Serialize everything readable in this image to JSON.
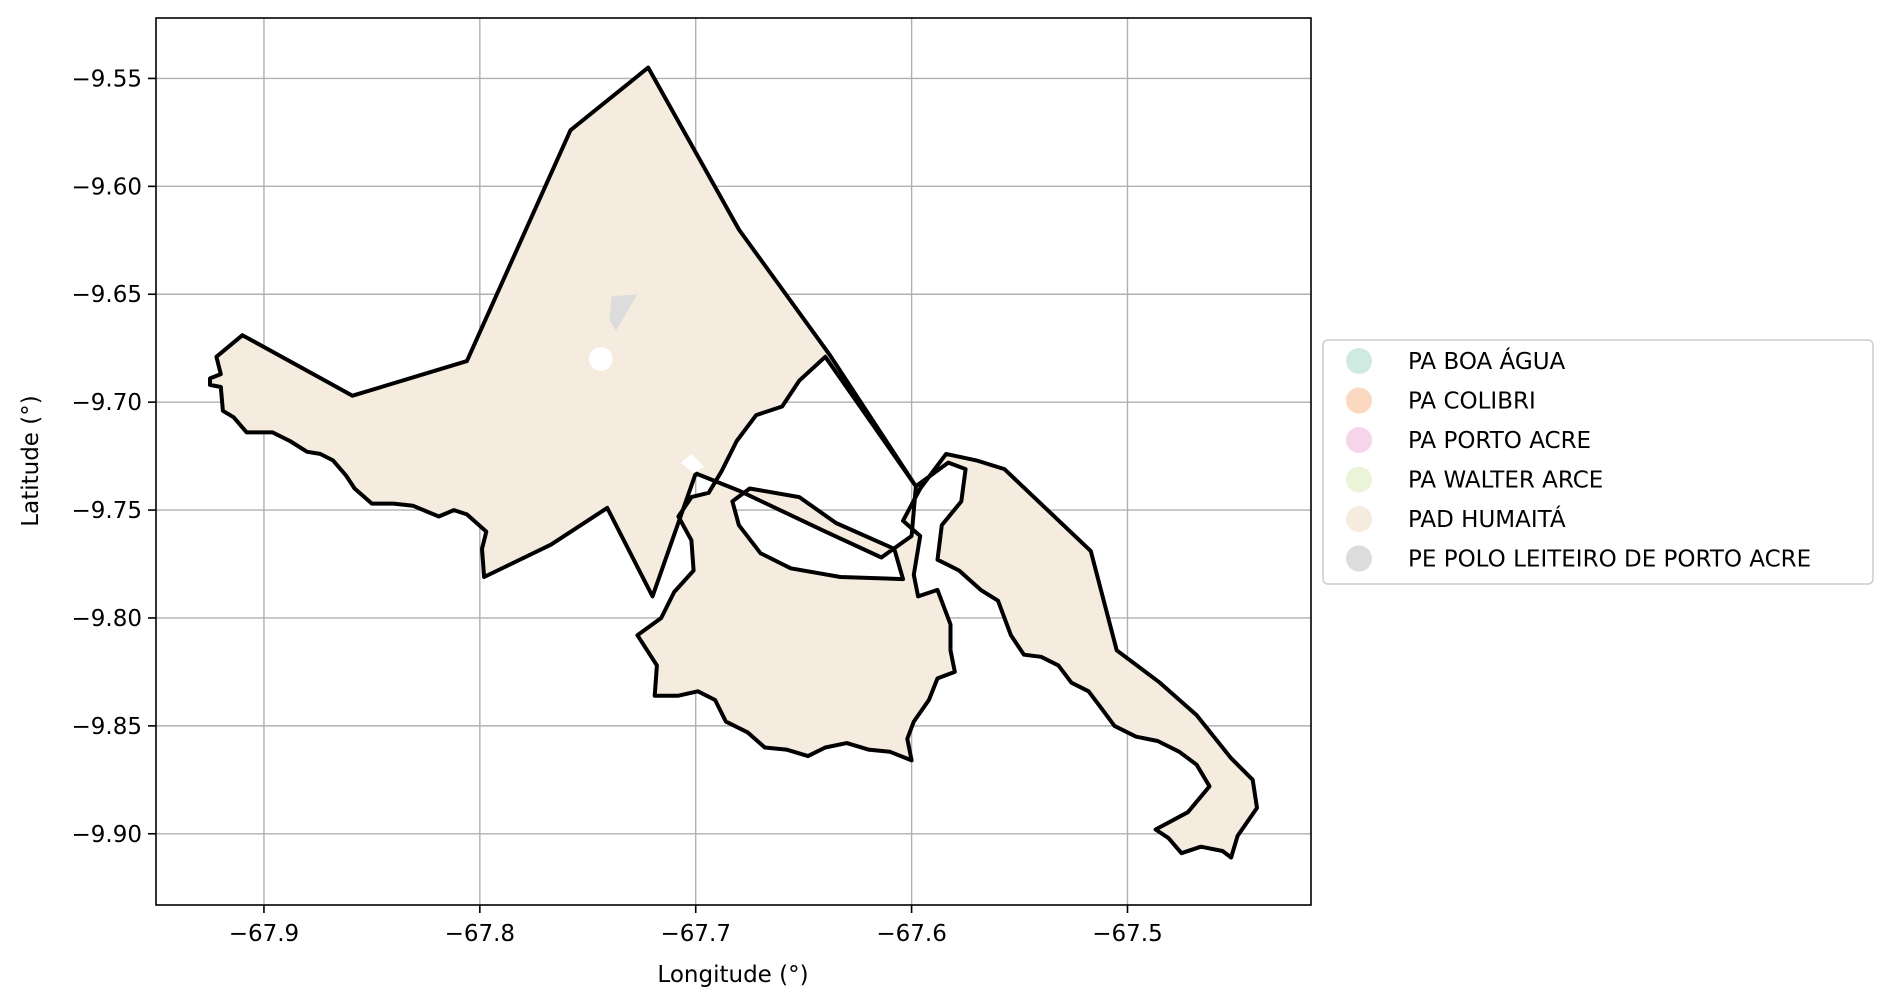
{
  "chart_data": {
    "type": "map",
    "xlabel": "Longitude (°)",
    "ylabel": "Latitude (°)",
    "xlim": [
      -67.95,
      -67.415
    ],
    "ylim": [
      -9.933,
      -9.522
    ],
    "x_ticks": [
      -67.9,
      -67.8,
      -67.7,
      -67.6,
      -67.5
    ],
    "x_tick_labels": [
      "−67.9",
      "−67.8",
      "−67.7",
      "−67.6",
      "−67.5"
    ],
    "y_ticks": [
      -9.55,
      -9.6,
      -9.65,
      -9.7,
      -9.75,
      -9.8,
      -9.85,
      -9.9
    ],
    "y_tick_labels": [
      "−9.55",
      "−9.60",
      "−9.65",
      "−9.70",
      "−9.75",
      "−9.80",
      "−9.85",
      "−9.90"
    ],
    "grid": true,
    "legend_position": "center-right outside plot",
    "legend": [
      {
        "label": "PA BOA ÁGUA",
        "color": "#cfeadf"
      },
      {
        "label": "PA COLIBRI",
        "color": "#fbd8c0"
      },
      {
        "label": "PA PORTO ACRE",
        "color": "#f5d5ea"
      },
      {
        "label": "PA WALTER ARCE",
        "color": "#e9f4d8"
      },
      {
        "label": "PAD HUMAITÁ",
        "color": "#f5ebde"
      },
      {
        "label": "PE POLO LEITEIRO DE PORTO ACRE",
        "color": "#dcdcdc"
      }
    ],
    "regions": [
      {
        "name": "PAD HUMAITÁ",
        "color": "#f5ebde",
        "outline": "#000000",
        "outer": [
          [
            -67.922,
            -9.679
          ],
          [
            -67.91,
            -9.669
          ],
          [
            -67.859,
            -9.697
          ],
          [
            -67.806,
            -9.681
          ],
          [
            -67.758,
            -9.574
          ],
          [
            -67.722,
            -9.545
          ],
          [
            -67.68,
            -9.62
          ],
          [
            -67.638,
            -9.678
          ],
          [
            -67.598,
            -9.739
          ],
          [
            -67.583,
            -9.728
          ],
          [
            -67.575,
            -9.731
          ],
          [
            -67.577,
            -9.746
          ],
          [
            -67.586,
            -9.757
          ],
          [
            -67.588,
            -9.773
          ],
          [
            -67.578,
            -9.778
          ],
          [
            -67.568,
            -9.787
          ],
          [
            -67.56,
            -9.792
          ],
          [
            -67.554,
            -9.808
          ],
          [
            -67.548,
            -9.817
          ],
          [
            -67.54,
            -9.818
          ],
          [
            -67.532,
            -9.822
          ],
          [
            -67.526,
            -9.83
          ],
          [
            -67.518,
            -9.834
          ],
          [
            -67.512,
            -9.842
          ],
          [
            -67.506,
            -9.85
          ],
          [
            -67.496,
            -9.855
          ],
          [
            -67.486,
            -9.857
          ],
          [
            -67.476,
            -9.862
          ],
          [
            -67.468,
            -9.868
          ],
          [
            -67.462,
            -9.878
          ],
          [
            -67.472,
            -9.89
          ],
          [
            -67.487,
            -9.898
          ],
          [
            -67.481,
            -9.902
          ],
          [
            -67.475,
            -9.909
          ],
          [
            -67.466,
            -9.906
          ],
          [
            -67.456,
            -9.908
          ],
          [
            -67.452,
            -9.911
          ],
          [
            -67.449,
            -9.901
          ],
          [
            -67.44,
            -9.888
          ],
          [
            -67.442,
            -9.875
          ],
          [
            -67.452,
            -9.865
          ],
          [
            -67.468,
            -9.845
          ],
          [
            -67.485,
            -9.83
          ],
          [
            -67.505,
            -9.815
          ],
          [
            -67.517,
            -9.769
          ],
          [
            -67.557,
            -9.731
          ],
          [
            -67.57,
            -9.727
          ],
          [
            -67.584,
            -9.724
          ],
          [
            -67.596,
            -9.74
          ],
          [
            -67.604,
            -9.755
          ],
          [
            -67.596,
            -9.762
          ],
          [
            -67.599,
            -9.78
          ],
          [
            -67.597,
            -9.79
          ],
          [
            -67.588,
            -9.787
          ],
          [
            -67.582,
            -9.803
          ],
          [
            -67.582,
            -9.815
          ],
          [
            -67.58,
            -9.825
          ],
          [
            -67.588,
            -9.828
          ],
          [
            -67.592,
            -9.838
          ],
          [
            -67.599,
            -9.848
          ],
          [
            -67.602,
            -9.856
          ],
          [
            -67.6,
            -9.866
          ],
          [
            -67.61,
            -9.862
          ],
          [
            -67.62,
            -9.861
          ],
          [
            -67.63,
            -9.858
          ],
          [
            -67.64,
            -9.86
          ],
          [
            -67.648,
            -9.864
          ],
          [
            -67.658,
            -9.861
          ],
          [
            -67.668,
            -9.86
          ],
          [
            -67.676,
            -9.853
          ],
          [
            -67.686,
            -9.848
          ],
          [
            -67.691,
            -9.838
          ],
          [
            -67.699,
            -9.834
          ],
          [
            -67.708,
            -9.836
          ],
          [
            -67.719,
            -9.836
          ],
          [
            -67.718,
            -9.822
          ],
          [
            -67.727,
            -9.808
          ],
          [
            -67.716,
            -9.8
          ],
          [
            -67.71,
            -9.788
          ],
          [
            -67.701,
            -9.778
          ],
          [
            -67.702,
            -9.764
          ],
          [
            -67.708,
            -9.753
          ],
          [
            -67.702,
            -9.744
          ],
          [
            -67.694,
            -9.742
          ],
          [
            -67.688,
            -9.732
          ],
          [
            -67.681,
            -9.718
          ],
          [
            -67.672,
            -9.706
          ],
          [
            -67.66,
            -9.702
          ],
          [
            -67.652,
            -9.69
          ],
          [
            -67.64,
            -9.679
          ],
          [
            -67.598,
            -9.739
          ],
          [
            -67.6,
            -9.762
          ],
          [
            -67.614,
            -9.772
          ],
          [
            -67.64,
            -9.76
          ],
          [
            -67.68,
            -9.741
          ],
          [
            -67.7,
            -9.733
          ],
          [
            -67.72,
            -9.79
          ],
          [
            -67.741,
            -9.749
          ],
          [
            -67.767,
            -9.766
          ],
          [
            -67.798,
            -9.781
          ],
          [
            -67.799,
            -9.768
          ],
          [
            -67.797,
            -9.76
          ],
          [
            -67.806,
            -9.752
          ],
          [
            -67.812,
            -9.75
          ],
          [
            -67.819,
            -9.753
          ],
          [
            -67.831,
            -9.748
          ],
          [
            -67.84,
            -9.747
          ],
          [
            -67.85,
            -9.747
          ],
          [
            -67.858,
            -9.74
          ],
          [
            -67.862,
            -9.734
          ],
          [
            -67.868,
            -9.727
          ],
          [
            -67.874,
            -9.724
          ],
          [
            -67.88,
            -9.723
          ],
          [
            -67.888,
            -9.718
          ],
          [
            -67.896,
            -9.714
          ],
          [
            -67.908,
            -9.714
          ],
          [
            -67.914,
            -9.707
          ],
          [
            -67.919,
            -9.704
          ],
          [
            -67.92,
            -9.693
          ],
          [
            -67.925,
            -9.692
          ],
          [
            -67.925,
            -9.689
          ],
          [
            -67.92,
            -9.687
          ],
          [
            -67.922,
            -9.679
          ]
        ],
        "holes": [
          [
            [
              -67.683,
              -9.746
            ],
            [
              -67.675,
              -9.74
            ],
            [
              -67.652,
              -9.744
            ],
            [
              -67.635,
              -9.756
            ],
            [
              -67.608,
              -9.768
            ],
            [
              -67.604,
              -9.782
            ],
            [
              -67.633,
              -9.781
            ],
            [
              -67.656,
              -9.777
            ],
            [
              -67.67,
              -9.77
            ],
            [
              -67.68,
              -9.757
            ],
            [
              -67.683,
              -9.746
            ]
          ]
        ]
      },
      {
        "name": "PE POLO LEITEIRO DE PORTO ACRE",
        "color": "#dcdcdc",
        "outline": null,
        "outer": [
          [
            -67.739,
            -9.651
          ],
          [
            -67.727,
            -9.65
          ],
          [
            -67.737,
            -9.667
          ],
          [
            -67.74,
            -9.662
          ]
        ],
        "holes": []
      }
    ],
    "white_patches": [
      {
        "type": "circle",
        "center": [
          -67.744,
          -9.68
        ],
        "radius": 0.0055
      },
      {
        "type": "polygon",
        "points": [
          [
            -67.707,
            -9.728
          ],
          [
            -67.702,
            -9.724
          ],
          [
            -67.696,
            -9.73
          ],
          [
            -67.701,
            -9.733
          ]
        ]
      }
    ]
  }
}
